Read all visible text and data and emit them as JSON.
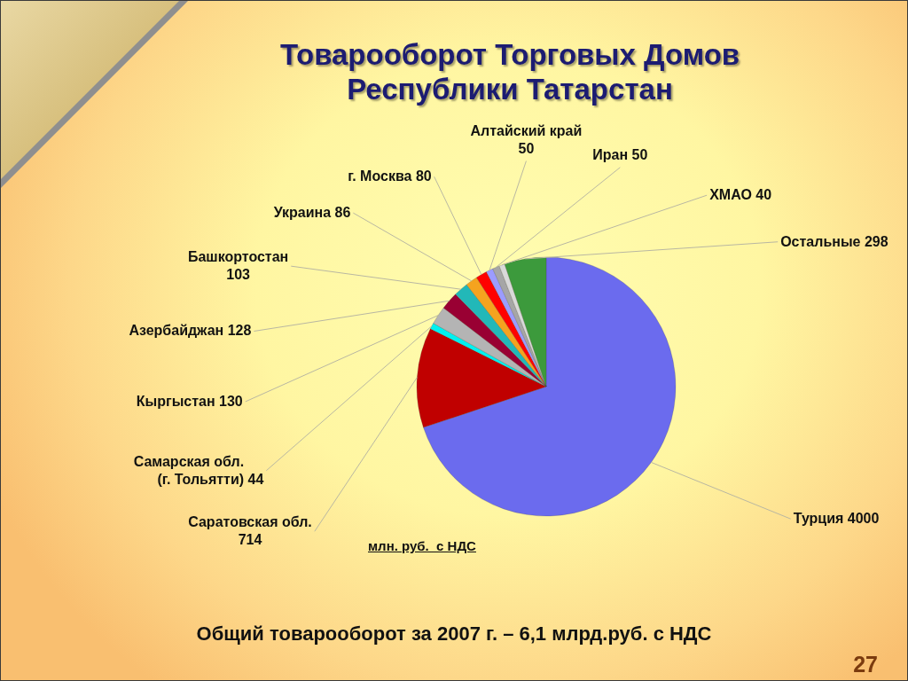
{
  "chart_data": {
    "type": "pie",
    "title": "Товарооборот Торговых Домов Республики Татарстан",
    "categories": [
      "Турция",
      "Саратовская обл.",
      "Самарская обл. (г. Тольятти)",
      "Кыргыстан",
      "Азербайджан",
      "Башкортостан",
      "Украина",
      "г. Москва",
      "Алтайский край",
      "Иран",
      "ХМАО",
      "Остальные"
    ],
    "values": [
      4000,
      714,
      44,
      130,
      128,
      103,
      86,
      80,
      50,
      50,
      40,
      298
    ],
    "colors": [
      "#6b6bee",
      "#c00000",
      "#00f0f0",
      "#b4b4b4",
      "#990033",
      "#22b8b8",
      "#f5a31f",
      "#ff0000",
      "#9c9cff",
      "#a6a6a6",
      "#d9d9d9",
      "#3c9a3c"
    ],
    "data_labels": true,
    "annotations": [
      "млн. руб.  с НДС",
      "Общий товарооборот за 2007 г. – 6,1 млрд.руб. с НДС",
      "27"
    ]
  }
}
